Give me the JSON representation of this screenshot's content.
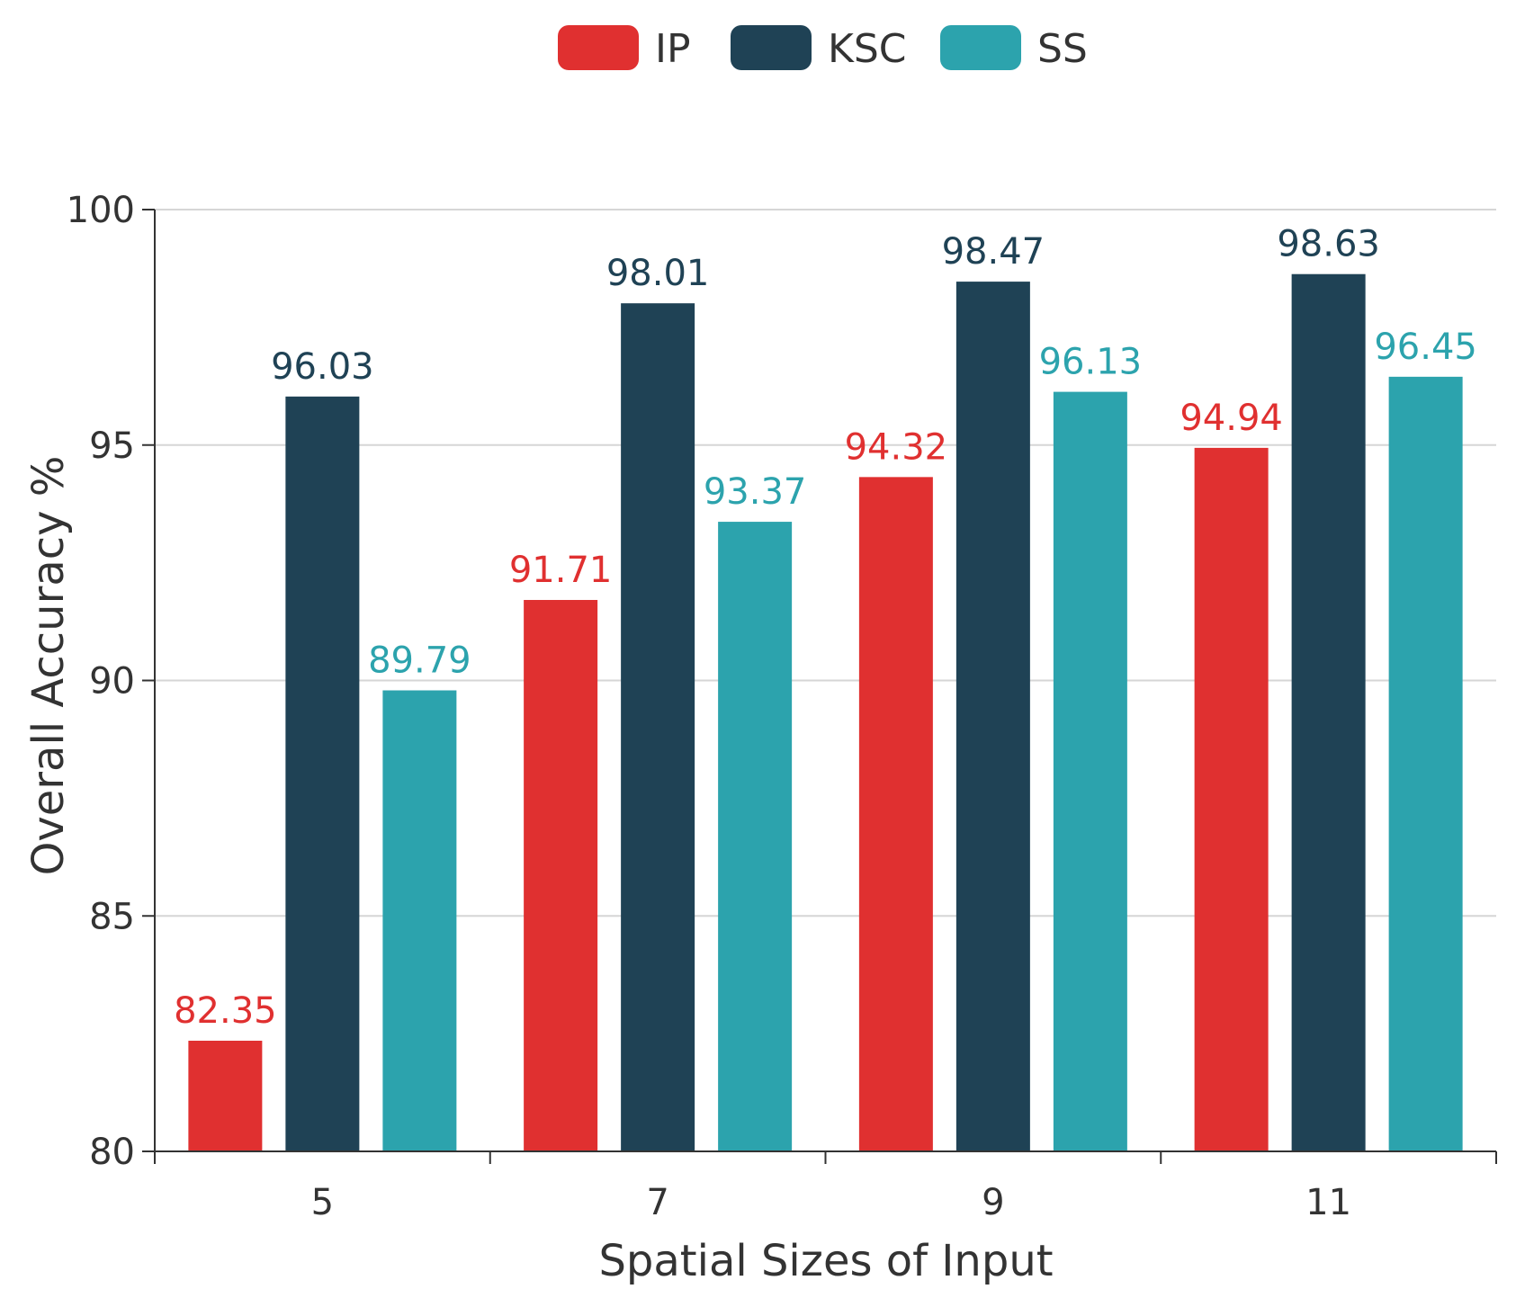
{
  "chart_data": {
    "type": "bar",
    "title": "",
    "xlabel": "Spatial Sizes of Input",
    "ylabel": "Overall Accuracy %",
    "categories": [
      "5",
      "7",
      "9",
      "11"
    ],
    "ylim": [
      80,
      100
    ],
    "yticks": [
      "80",
      "85",
      "90",
      "95",
      "100"
    ],
    "grid": true,
    "legend_position": "top-center",
    "series": [
      {
        "name": "IP",
        "color": "#e03030",
        "values": [
          82.35,
          91.71,
          94.32,
          94.94
        ],
        "labels": [
          "82.35",
          "91.71",
          "94.32",
          "94.94"
        ]
      },
      {
        "name": "KSC",
        "color": "#1f4255",
        "values": [
          96.03,
          98.01,
          98.47,
          98.63
        ],
        "labels": [
          "96.03",
          "98.01",
          "98.47",
          "98.63"
        ]
      },
      {
        "name": "SS",
        "color": "#2ca3ad",
        "values": [
          89.79,
          93.37,
          96.13,
          96.45
        ],
        "labels": [
          "89.79",
          "93.37",
          "96.13",
          "96.45"
        ]
      }
    ]
  }
}
